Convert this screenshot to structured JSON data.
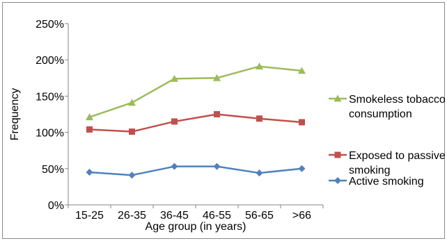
{
  "chart_data": {
    "type": "line",
    "title": "",
    "xlabel": "Age group (in years)",
    "ylabel": "Frequency",
    "categories": [
      "15-25",
      "26-35",
      "36-45",
      "46-55",
      "56-65",
      ">66"
    ],
    "ylim": [
      0,
      250
    ],
    "yticks": [
      0,
      50,
      100,
      150,
      200,
      250
    ],
    "ytick_labels": [
      "0%",
      "50%",
      "100%",
      "150%",
      "200%",
      "250%"
    ],
    "grid": false,
    "legend_position": "right",
    "series": [
      {
        "name_lines": [
          "Smokeless tobacco",
          "consumption"
        ],
        "color": "#9bbb59",
        "marker": "triangle",
        "values": [
          121,
          141,
          174,
          175,
          191,
          185
        ]
      },
      {
        "name_lines": [
          "Exposed to passive",
          "smoking"
        ],
        "color": "#c0504d",
        "marker": "square",
        "values": [
          104,
          101,
          115,
          125,
          119,
          114
        ]
      },
      {
        "name_lines": [
          "Active smoking"
        ],
        "color": "#4f81bd",
        "marker": "diamond",
        "values": [
          45,
          41,
          53,
          53,
          44,
          50
        ]
      }
    ]
  }
}
